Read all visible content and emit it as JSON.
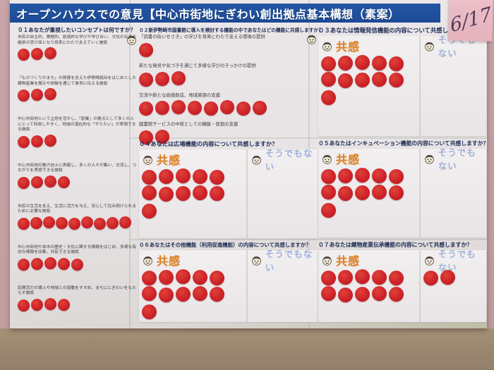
{
  "wall": {
    "date_note": "6/17"
  },
  "poster": {
    "title": "オープンハウスでの意見【中心市街地にぎわい創出拠点基本構想（素案）",
    "labels": {
      "agree": "共感",
      "disagree": "そうでもない"
    },
    "colors": {
      "title_bar": "#1d4f9f",
      "dot_red": "#cb2127",
      "agree_text": "#dd8327",
      "disagree_text": "#9db2d8",
      "sticky_note": "#e9bac4",
      "wall": "#c5a1a5",
      "table": "#9c8971"
    },
    "questions": {
      "q1": {
        "title": "０１あなたが重視したいコンセプトは何ですか？",
        "items": [
          {
            "text": "市民の自主的、積極的、創造的な学びや学び合い、文化の伝承や継承の受け皿となり将来にわたり支えていく施設",
            "dots": 3
          },
          {
            "text": "「ものづくりのまち」の発展を支えた伊勢崎銘仙をはじめとした織物産業を展示や体験を通じて後世に伝える施設",
            "dots": 3
          },
          {
            "text": "中心市街地という立地を活かし、「創業」の拠点として多くの人にとって利用しやすく、地域の潜在的な「やりたい」が実現できる施設",
            "dots": 3
          },
          {
            "text": "中心市街地の魅力向上に貢献し、多くの人々が集い、交流し、つながりを実感できる施設",
            "dots": 4
          },
          {
            "text": "市民の生活を支え、生活に活力を与え、安心して住み続けられるために必要な施設",
            "dots": 9
          },
          {
            "text": "中心市街地や本市の歴史・文化に関する情報をはじめ、多様な有効な情報を収集、共有できる施設",
            "dots": 5
          },
          {
            "text": "民間活力の導入や地域との協働をすすめ、まちににぎわいをもたらす施設",
            "dots": 4
          }
        ]
      },
      "q2": {
        "title": "０２新伊勢崎市図書館に導入を検討する機能の中であなたはどの機能に共感しますか？",
        "items": [
          {
            "text": "「読書の街いせさき」の学びを将来にわたり支える環境の提供",
            "dots": 1
          },
          {
            "text": "新たな発見や気づきを通じて多様な学びのきっかけの提供",
            "dots": 3
          },
          {
            "text": "交流や新たな価値創造、地域資源の支援",
            "dots": 8
          },
          {
            "text": "図書館サービスの中核としての機能・役割の支援",
            "dots": 2
          }
        ]
      },
      "q3": {
        "title": "０３あなたは情報発信機能の内容について共感しますか？",
        "agree_dots": 11,
        "disagree_dots": 0
      },
      "q4": {
        "title": "０４あなたは広場機能の内容について共感しますか？",
        "agree_dots": 11,
        "disagree_dots": 0
      },
      "q5": {
        "title": "０５あなたはインキュベーション機能の内容について共感しますか？",
        "agree_dots": 11,
        "disagree_dots": 0
      },
      "q6": {
        "title": "０６あなたはその他機能（利用促進機能）の内容について共感しますか？",
        "agree_dots": 11,
        "disagree_dots": 0
      },
      "q7": {
        "title": "０７あなたは織物産業伝承機能の内容について共感しますか？",
        "agree_dots": 10,
        "disagree_dots": 2
      }
    }
  }
}
